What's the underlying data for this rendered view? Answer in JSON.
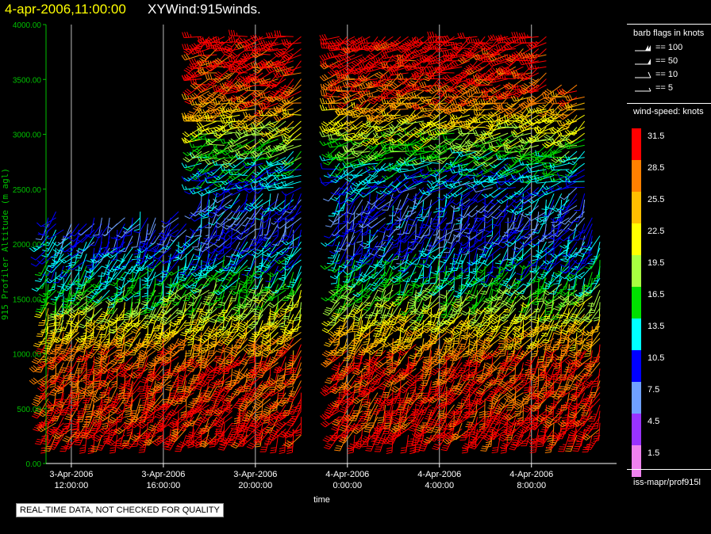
{
  "header": {
    "timestamp": "4-apr-2006,11:00:00",
    "product": "XYWind:915winds."
  },
  "chart_data": {
    "type": "wind-barb time-height",
    "ylabel": "915 Profiler Altitude (m agl)",
    "xlabel": "time",
    "ylim": [
      0,
      4000
    ],
    "y_ticks": [
      "0.00",
      "500.00",
      "1000.00",
      "1500.00",
      "2000.00",
      "2500.00",
      "3000.00",
      "3500.00",
      "4000.00"
    ],
    "x_ticks": [
      {
        "date": "3-Apr-2006",
        "time": "12:00:00",
        "hour": 0
      },
      {
        "date": "3-Apr-2006",
        "time": "16:00:00",
        "hour": 4
      },
      {
        "date": "3-Apr-2006",
        "time": "20:00:00",
        "hour": 8
      },
      {
        "date": "4-Apr-2006",
        "time": "0:00:00",
        "hour": 12
      },
      {
        "date": "4-Apr-2006",
        "time": "4:00:00",
        "hour": 16
      },
      {
        "date": "4-Apr-2006",
        "time": "8:00:00",
        "hour": 20
      }
    ],
    "xlim_hours": [
      -1.1,
      23.7
    ],
    "grid_vertical": true,
    "data_gap_hours": [
      10.0,
      11.5
    ],
    "speed_profile_knots": [
      {
        "altitude": 300,
        "speed": 32
      },
      {
        "altitude": 600,
        "speed": 31
      },
      {
        "altitude": 1000,
        "speed": 30
      },
      {
        "altitude": 1400,
        "speed": 22
      },
      {
        "altitude": 1800,
        "speed": 14
      },
      {
        "altitude": 2200,
        "speed": 9
      },
      {
        "altitude": 2600,
        "speed": 12
      },
      {
        "altitude": 3000,
        "speed": 20
      },
      {
        "altitude": 3400,
        "speed": 30
      },
      {
        "altitude": 3900,
        "speed": 33
      }
    ]
  },
  "legend": {
    "barb_title": "barb flags in knots",
    "flags": [
      {
        "label": "== 100",
        "kind": "pennant2"
      },
      {
        "label": "== 50",
        "kind": "pennant"
      },
      {
        "label": "== 10",
        "kind": "full"
      },
      {
        "label": "== 5",
        "kind": "half"
      }
    ],
    "speed_title": "wind-speed: knots",
    "colors": [
      {
        "label": "31.5",
        "color": "#ff0000"
      },
      {
        "label": "28.5",
        "color": "#ff8000"
      },
      {
        "label": "25.5",
        "color": "#ffbf00"
      },
      {
        "label": "22.5",
        "color": "#ffff00"
      },
      {
        "label": "19.5",
        "color": "#a8ff40"
      },
      {
        "label": "16.5",
        "color": "#00e000"
      },
      {
        "label": "13.5",
        "color": "#00ffff"
      },
      {
        "label": "10.5",
        "color": "#0000ff"
      },
      {
        "label": "7.5",
        "color": "#6fa0ff"
      },
      {
        "label": "4.5",
        "color": "#9933ff"
      },
      {
        "label": "1.5",
        "color": "#ee82ee"
      }
    ],
    "source": "iss-mapr/prof915l"
  },
  "notice": "REAL-TIME DATA, NOT CHECKED FOR QUALITY"
}
